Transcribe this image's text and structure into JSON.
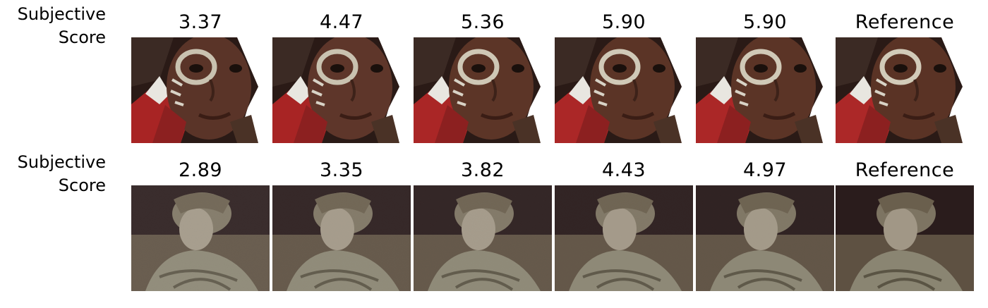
{
  "rows": [
    {
      "label_line1": "Subjective",
      "label_line2": "Score",
      "scores": [
        "3.37",
        "4.47",
        "5.36",
        "5.90",
        "5.90",
        "Reference"
      ]
    },
    {
      "label_line1": "Subjective",
      "label_line2": "Score",
      "scores": [
        "2.89",
        "3.35",
        "3.82",
        "4.43",
        "4.97",
        "Reference"
      ]
    }
  ]
}
